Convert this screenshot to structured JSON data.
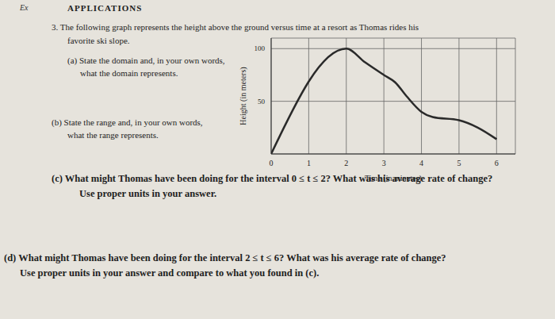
{
  "document": {
    "header": {
      "label": "Ex",
      "title": "APPLICATIONS"
    },
    "problem": {
      "lines": [
        "3. The following graph represents the height above the ground versus time at a resort as Thomas rides his",
        "favorite ski slope."
      ]
    },
    "questions": [
      {
        "lines": [
          "(a) State the domain and, in your own words,",
          "what the domain represents."
        ]
      },
      {
        "lines": [
          "(b) State the range and, in your own words,",
          "what the range represents."
        ]
      },
      {
        "lines": [
          "(c) What might Thomas have been doing for the interval 0 ≤ t ≤ 2? What was his average rate of change?",
          "Use proper units in your answer."
        ]
      },
      {
        "lines": [
          "(d) What might Thomas have been doing for the interval 2 ≤ t ≤ 6? What was his average rate of change?",
          "Use proper units in your answer and compare to what you found in (c)."
        ]
      }
    ]
  },
  "chart_data": {
    "type": "line",
    "x_label": "Time (in minutes)",
    "y_label": "Height (in meters)",
    "x": [
      0,
      2,
      2.5,
      3,
      3.3,
      3.6,
      4,
      4.3,
      5,
      5.5,
      6
    ],
    "values": [
      0,
      100,
      87,
      75,
      68,
      55,
      40,
      35,
      32,
      25,
      14
    ],
    "color": "#2a2a2a",
    "xlim": [
      0,
      6.5
    ],
    "ylim": [
      0,
      110
    ],
    "xticks": [
      0,
      1,
      2,
      3,
      4,
      5,
      6
    ],
    "yticks": [
      50,
      100
    ],
    "grid": true
  }
}
